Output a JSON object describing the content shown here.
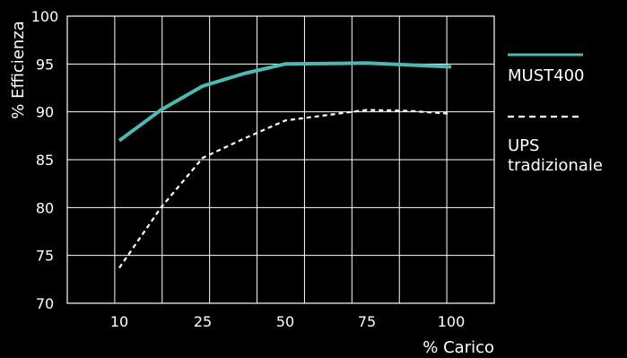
{
  "chart_data": {
    "type": "line",
    "xlabel": "% Carico",
    "ylabel": "% Efficienza",
    "categories": [
      "10",
      "25",
      "50",
      "75",
      "100"
    ],
    "ylim": [
      70,
      100
    ],
    "yticks": [
      70,
      75,
      80,
      85,
      90,
      95,
      100
    ],
    "grid": true,
    "legend_position": "right",
    "series": [
      {
        "name": "MUST400",
        "color": "#4fb8b0",
        "style": "solid",
        "x": [
          10,
          17.5,
          25,
          37.5,
          50,
          75,
          87.5,
          100
        ],
        "values": [
          87.0,
          90.2,
          92.7,
          94.0,
          95.0,
          95.1,
          94.9,
          94.7
        ]
      },
      {
        "name_lines": [
          "UPS",
          "tradizionale"
        ],
        "color": "#ffffff",
        "style": "dashed",
        "x": [
          10,
          17.5,
          25,
          37.5,
          50,
          75,
          87.5,
          100
        ],
        "values": [
          73.7,
          80.0,
          85.2,
          87.2,
          89.1,
          90.2,
          90.1,
          89.8
        ]
      }
    ]
  }
}
